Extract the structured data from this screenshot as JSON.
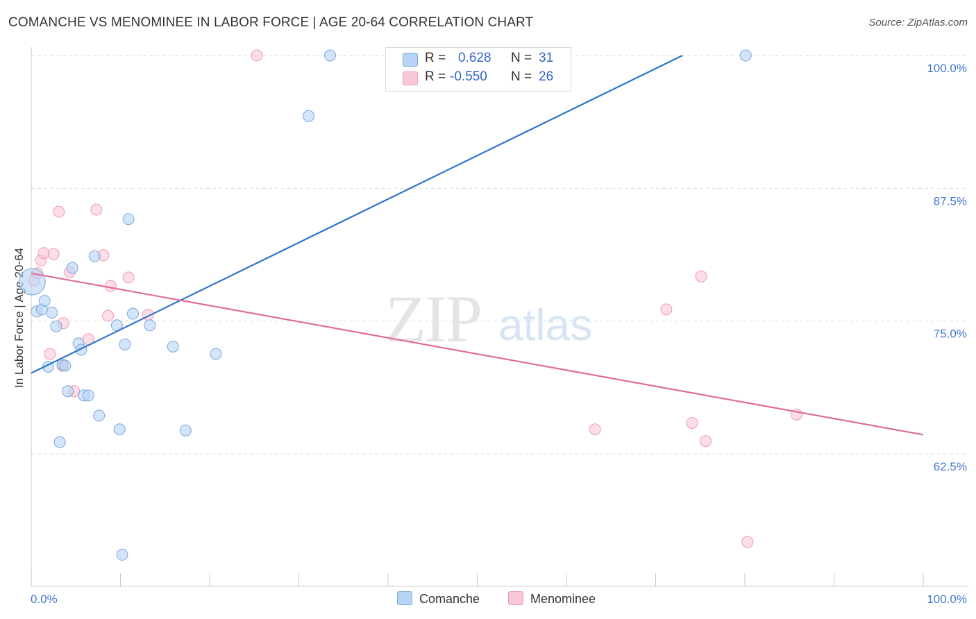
{
  "header": {
    "title": "COMANCHE VS MENOMINEE IN LABOR FORCE | AGE 20-64 CORRELATION CHART",
    "source": "Source: ZipAtlas.com"
  },
  "watermark": {
    "zip": "ZIP",
    "atlas": "atlas"
  },
  "legend": {
    "r_label": "R =",
    "n_label": "N =",
    "comanche": {
      "r": "0.628",
      "n": "31"
    },
    "menominee": {
      "r": "-0.550",
      "n": "26"
    }
  },
  "bottom_legend": [
    "Comanche",
    "Menominee"
  ],
  "colors": {
    "comanche_fill": "#b8d4f5",
    "comanche_stroke": "#7aa7dd",
    "comanche_line": "#2f74cc",
    "menominee_fill": "#f9c8d6",
    "menominee_stroke": "#ee9bb5",
    "menominee_line": "#e06c98",
    "tick_text": "#4477cc"
  },
  "chart_data": {
    "type": "scatter",
    "title": "COMANCHE VS MENOMINEE IN LABOR FORCE | AGE 20-64 CORRELATION CHART",
    "xlabel": "",
    "ylabel": "In Labor Force | Age 20-64",
    "xlim": [
      0,
      100
    ],
    "ylim": [
      51.5,
      102
    ],
    "x_tick_labels": [
      "0.0%",
      "100.0%"
    ],
    "y_ticks": [
      62.5,
      75.0,
      87.5,
      100.0
    ],
    "y_tick_labels": [
      "62.5%",
      "75.0%",
      "87.5%",
      "100.0%"
    ],
    "grid": true,
    "series": [
      {
        "name": "Comanche",
        "points": [
          {
            "x": 0.1,
            "y": 78.7,
            "big": true
          },
          {
            "x": 0.6,
            "y": 75.9
          },
          {
            "x": 1.2,
            "y": 76.1
          },
          {
            "x": 1.5,
            "y": 76.9
          },
          {
            "x": 1.9,
            "y": 70.7
          },
          {
            "x": 2.3,
            "y": 75.8
          },
          {
            "x": 2.8,
            "y": 74.5
          },
          {
            "x": 3.2,
            "y": 63.6
          },
          {
            "x": 3.5,
            "y": 70.9
          },
          {
            "x": 3.8,
            "y": 70.8
          },
          {
            "x": 4.1,
            "y": 68.4
          },
          {
            "x": 4.6,
            "y": 80.0
          },
          {
            "x": 5.3,
            "y": 72.9
          },
          {
            "x": 5.6,
            "y": 72.3
          },
          {
            "x": 5.9,
            "y": 68.0
          },
          {
            "x": 6.4,
            "y": 68.0
          },
          {
            "x": 7.1,
            "y": 81.1
          },
          {
            "x": 7.6,
            "y": 66.1
          },
          {
            "x": 9.6,
            "y": 74.6
          },
          {
            "x": 9.9,
            "y": 64.8
          },
          {
            "x": 10.2,
            "y": 53.0
          },
          {
            "x": 10.5,
            "y": 72.8
          },
          {
            "x": 10.9,
            "y": 84.6
          },
          {
            "x": 11.4,
            "y": 75.7
          },
          {
            "x": 13.3,
            "y": 74.6
          },
          {
            "x": 15.9,
            "y": 72.6
          },
          {
            "x": 17.3,
            "y": 64.7
          },
          {
            "x": 20.7,
            "y": 71.9
          },
          {
            "x": 31.1,
            "y": 94.3
          },
          {
            "x": 33.5,
            "y": 100.0
          },
          {
            "x": 80.1,
            "y": 100.0
          }
        ],
        "trend": {
          "x": [
            0,
            73.0
          ],
          "y": [
            70.1,
            100.0
          ]
        }
      },
      {
        "name": "Menominee",
        "points": [
          {
            "x": 0.3,
            "y": 78.8
          },
          {
            "x": 0.7,
            "y": 79.5
          },
          {
            "x": 1.1,
            "y": 80.7
          },
          {
            "x": 1.4,
            "y": 81.4
          },
          {
            "x": 2.1,
            "y": 71.9
          },
          {
            "x": 2.5,
            "y": 81.3
          },
          {
            "x": 3.1,
            "y": 85.3
          },
          {
            "x": 3.5,
            "y": 70.8
          },
          {
            "x": 3.6,
            "y": 74.8
          },
          {
            "x": 4.3,
            "y": 79.6
          },
          {
            "x": 4.8,
            "y": 68.4
          },
          {
            "x": 6.4,
            "y": 73.3
          },
          {
            "x": 7.3,
            "y": 85.5
          },
          {
            "x": 8.1,
            "y": 81.2
          },
          {
            "x": 8.6,
            "y": 75.5
          },
          {
            "x": 8.9,
            "y": 78.3
          },
          {
            "x": 10.9,
            "y": 79.1
          },
          {
            "x": 13.1,
            "y": 75.6
          },
          {
            "x": 25.3,
            "y": 100.0
          },
          {
            "x": 63.2,
            "y": 64.8
          },
          {
            "x": 71.2,
            "y": 76.1
          },
          {
            "x": 74.1,
            "y": 65.4
          },
          {
            "x": 75.1,
            "y": 79.2
          },
          {
            "x": 75.6,
            "y": 63.7
          },
          {
            "x": 80.3,
            "y": 54.2
          },
          {
            "x": 85.8,
            "y": 66.2
          }
        ],
        "trend": {
          "x": [
            0,
            100
          ],
          "y": [
            79.5,
            64.3
          ]
        }
      }
    ]
  }
}
